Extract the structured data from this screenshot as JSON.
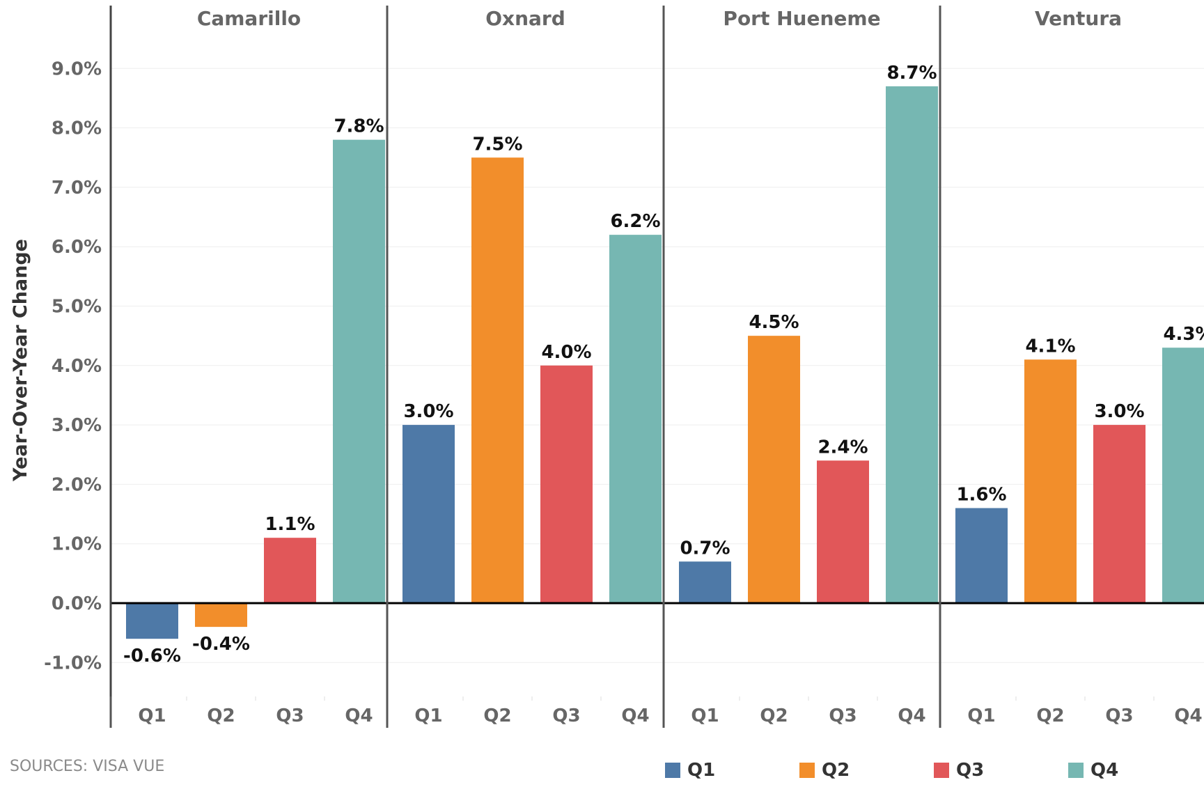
{
  "chart_data": {
    "type": "bar",
    "ylabel": "Year-Over-Year Change",
    "ylim": [
      -1.6,
      10.0
    ],
    "yticks": [
      "9.0%",
      "8.0%",
      "7.0%",
      "6.0%",
      "5.0%",
      "4.0%",
      "3.0%",
      "2.0%",
      "1.0%",
      "0.0%",
      "-1.0%"
    ],
    "ytick_values": [
      9,
      8,
      7,
      6,
      5,
      4,
      3,
      2,
      1,
      0,
      -1
    ],
    "categories": [
      "Q1",
      "Q2",
      "Q3",
      "Q4"
    ],
    "grid": true,
    "legend_position": "bottom",
    "panels": [
      {
        "name": "Camarillo",
        "values": [
          -0.6,
          -0.4,
          1.1,
          7.8
        ],
        "labels": [
          "-0.6%",
          "-0.4%",
          "1.1%",
          "7.8%"
        ]
      },
      {
        "name": "Oxnard",
        "values": [
          3.0,
          7.5,
          4.0,
          6.2
        ],
        "labels": [
          "3.0%",
          "7.5%",
          "4.0%",
          "6.2%"
        ]
      },
      {
        "name": "Port Hueneme",
        "values": [
          0.7,
          4.5,
          2.4,
          8.7
        ],
        "labels": [
          "0.7%",
          "4.5%",
          "2.4%",
          "8.7%"
        ]
      },
      {
        "name": "Ventura",
        "values": [
          1.6,
          4.1,
          3.0,
          4.3
        ],
        "labels": [
          "1.6%",
          "4.1%",
          "3.0%",
          "4.3%"
        ]
      }
    ],
    "series_colors": {
      "Q1": "#4e79a7",
      "Q2": "#f28e2b",
      "Q3": "#e15759",
      "Q4": "#76b7b2"
    }
  },
  "legend": {
    "items": [
      {
        "label": "Q1",
        "color": "#4e79a7"
      },
      {
        "label": "Q2",
        "color": "#f28e2b"
      },
      {
        "label": "Q3",
        "color": "#e15759"
      },
      {
        "label": "Q4",
        "color": "#76b7b2"
      }
    ]
  },
  "source": "SOURCES: VISA VUE"
}
